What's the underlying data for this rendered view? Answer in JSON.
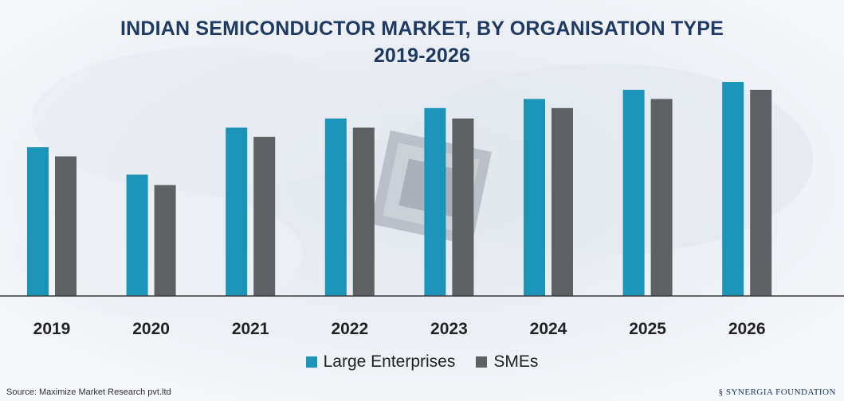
{
  "header": {
    "title_line1": "INDIAN SEMICONDUCTOR MARKET, BY ORGANISATION TYPE",
    "title_line2": "2019-2026"
  },
  "chart_data": {
    "type": "bar",
    "title": "INDIAN SEMICONDUCTOR MARKET, BY ORGANISATION TYPE 2019-2026",
    "categories": [
      "2019",
      "2020",
      "2021",
      "2022",
      "2023",
      "2024",
      "2025",
      "2026"
    ],
    "series": [
      {
        "name": "Large Enterprises",
        "color": "#1b94b8",
        "values": [
          57,
          46.5,
          64.5,
          68,
          72,
          75.5,
          79,
          82
        ]
      },
      {
        "name": "SMEs",
        "color": "#5f6062",
        "values": [
          53.5,
          42.5,
          61,
          64.5,
          68,
          72,
          75.5,
          79
        ]
      }
    ],
    "ylim": [
      0,
      100
    ],
    "xlabel": "",
    "ylabel": "",
    "grid": false,
    "legend_position": "bottom"
  },
  "legend": {
    "items": [
      {
        "label": "Large Enterprises",
        "color": "#1b94b8"
      },
      {
        "label": "SMEs",
        "color": "#5f6062"
      }
    ]
  },
  "footer": {
    "source": "Source: Maximize Market Research pvt.ltd",
    "brand": "SYNERGIA FOUNDATION"
  }
}
